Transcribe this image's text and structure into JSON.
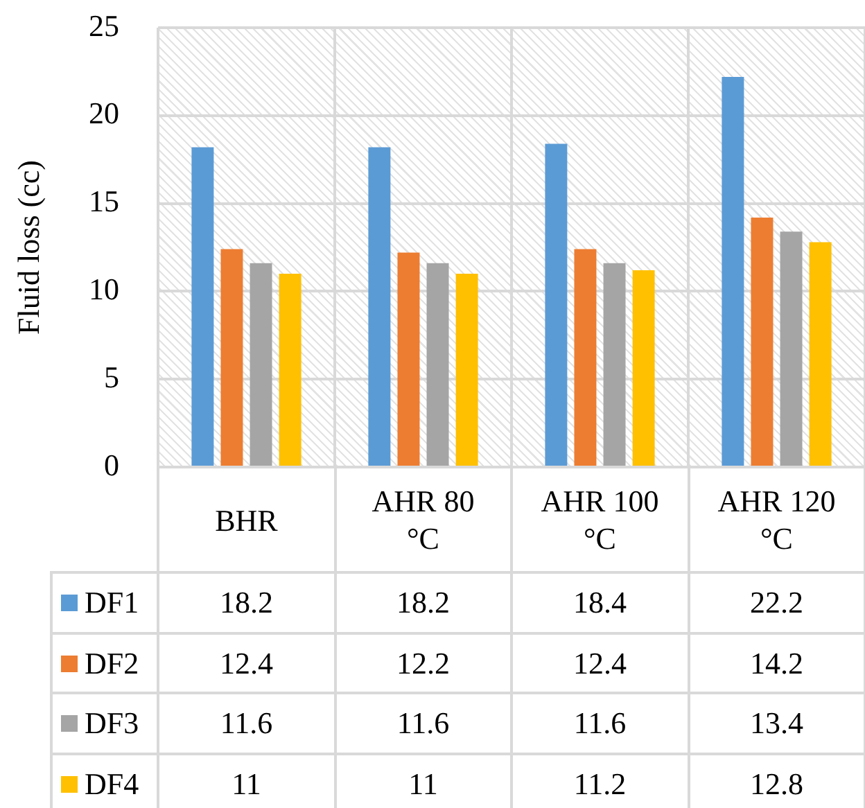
{
  "chart_data": {
    "type": "bar",
    "ylabel": "Fluid loss (cc)",
    "categories": [
      "BHR",
      "AHR 80 °C",
      "AHR 100 °C",
      "AHR 120 °C"
    ],
    "series": [
      {
        "name": "DF1",
        "color": "#5b9bd5",
        "values": [
          18.2,
          18.2,
          18.4,
          22.2
        ]
      },
      {
        "name": "DF2",
        "color": "#ed7d31",
        "values": [
          12.4,
          12.2,
          12.4,
          14.2
        ]
      },
      {
        "name": "DF3",
        "color": "#a5a5a5",
        "values": [
          11.6,
          11.6,
          11.6,
          13.4
        ]
      },
      {
        "name": "DF4",
        "color": "#ffc000",
        "values": [
          11,
          11,
          11.2,
          12.8
        ]
      }
    ],
    "ylim": [
      0,
      25
    ],
    "yticks": [
      0,
      5,
      10,
      15,
      20,
      25
    ],
    "grid": true,
    "legend": "bottom",
    "data_labels": true
  }
}
